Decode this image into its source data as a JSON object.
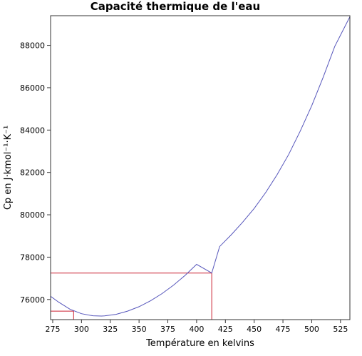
{
  "chart_data": {
    "type": "line",
    "title": "Capacité thermique de l'eau",
    "xlabel": "Température en kelvins",
    "ylabel": "Cp en J·kmol⁻¹·K⁻¹",
    "xlim": [
      273.16,
      533.15
    ],
    "ylim": [
      75050,
      89400
    ],
    "xticks": [
      275,
      300,
      325,
      350,
      375,
      400,
      425,
      450,
      475,
      500,
      525
    ],
    "yticks": [
      76000,
      78000,
      80000,
      82000,
      84000,
      86000,
      88000
    ],
    "grid": false,
    "colors": {
      "curve": "#5555bb",
      "markers": "#cc2233",
      "axes": "#333333"
    },
    "series": [
      {
        "x": [
          273.16,
          280,
          290,
          300,
          310,
          317.4,
          320,
          330,
          340,
          350,
          360,
          370,
          380,
          390,
          400,
          413.15,
          420,
          430,
          440,
          450,
          460,
          470,
          480,
          490,
          500,
          510,
          520,
          533.15
        ],
        "y": [
          76150,
          75880,
          75540,
          75330,
          75230,
          75220,
          75225,
          75300,
          75450,
          75660,
          75940,
          76280,
          76680,
          77140,
          77660,
          77250,
          78500,
          79050,
          79650,
          80300,
          81050,
          81900,
          82850,
          83950,
          85150,
          86500,
          87950,
          89350
        ]
      }
    ],
    "reference_lines": [
      {
        "x": 293.15,
        "y": 75450
      },
      {
        "x": 413.15,
        "y": 77250
      }
    ]
  }
}
